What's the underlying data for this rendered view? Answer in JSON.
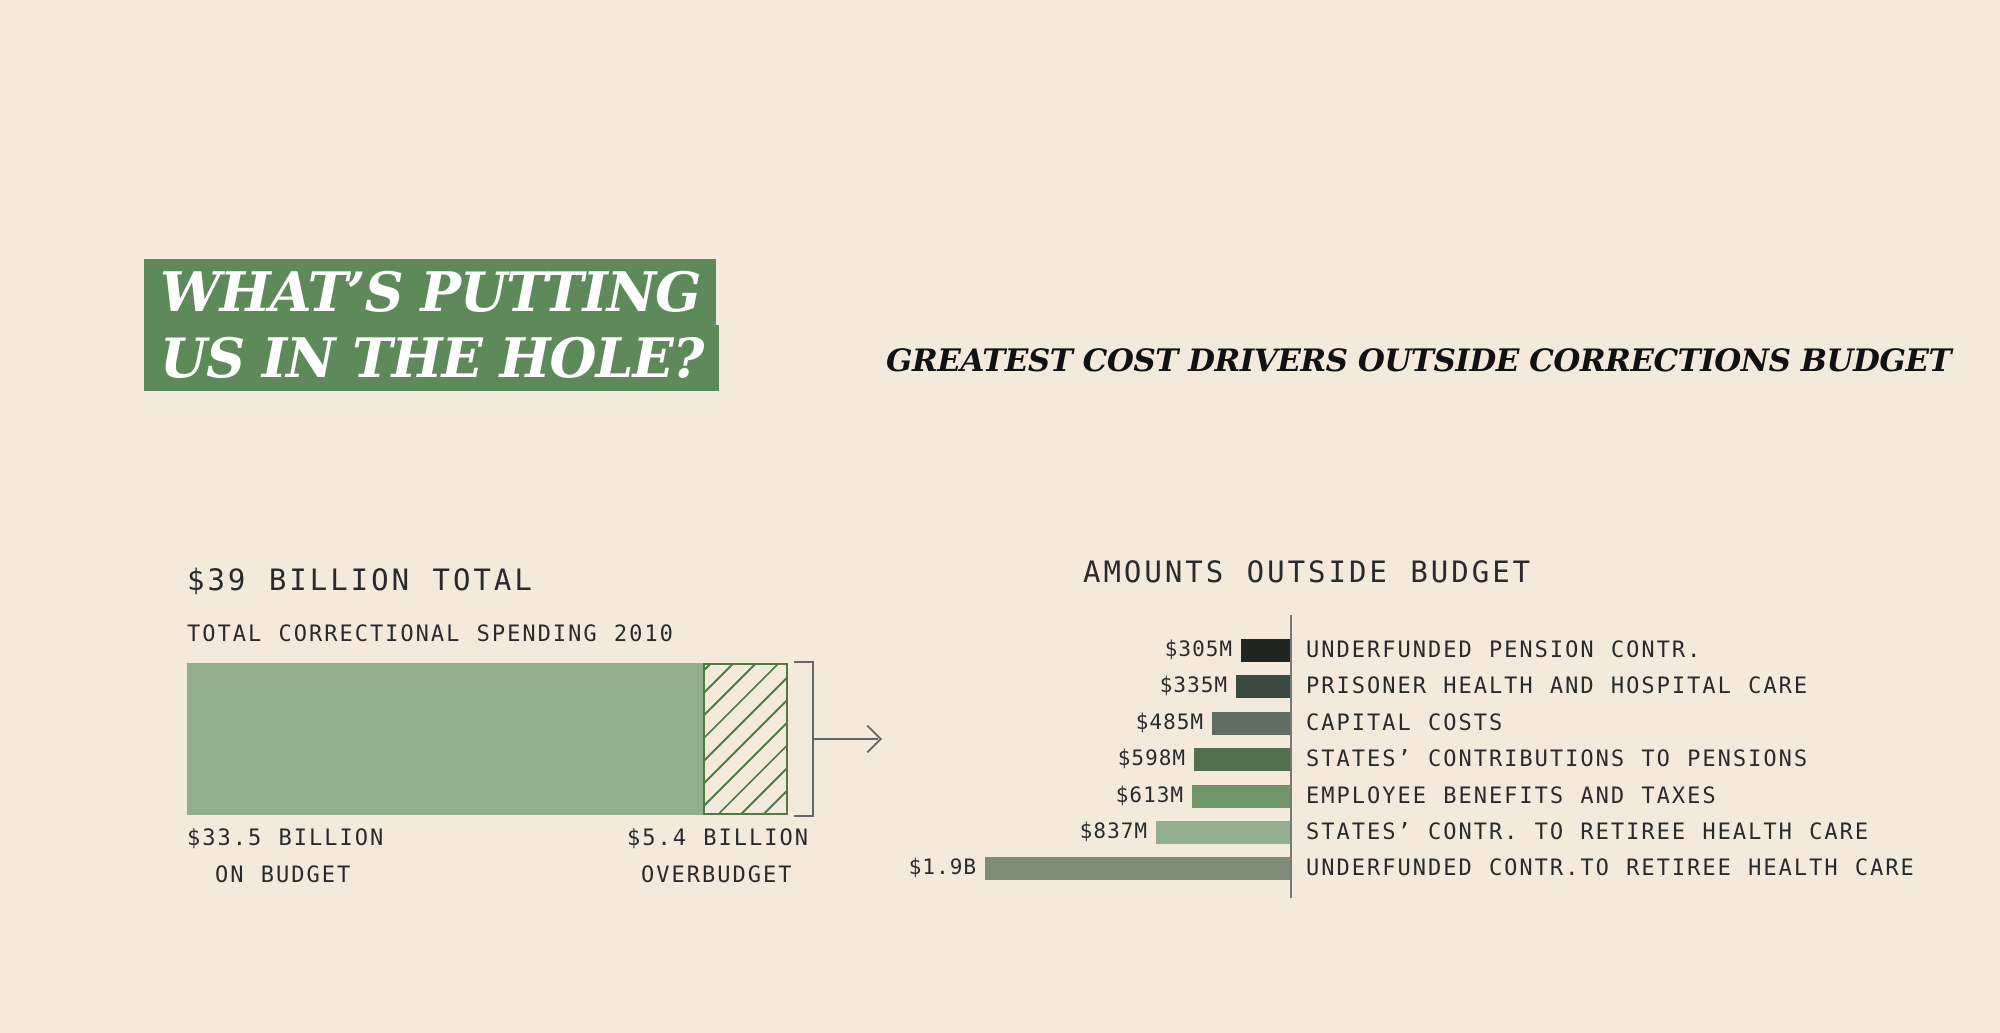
{
  "title": {
    "line1": "WHAT’S PUTTING",
    "line2": "US IN THE HOLE?"
  },
  "right_title": "GREATEST COST DRIVERS OUTSIDE CORRECTIONS BUDGET",
  "colors": {
    "background": "#f4eadc",
    "title_bg": "#5e8a5a",
    "on_budget": "#93ae8e",
    "over_budget_hatch": "#4f7a45"
  },
  "chart_data": [
    {
      "type": "bar",
      "title": "$39 BILLION TOTAL",
      "subtitle": "TOTAL CORRECTIONAL SPENDING 2010",
      "orientation": "horizontal-stacked",
      "total": 39,
      "segments": [
        {
          "value_label": "$33.5 BILLION",
          "label": "ON BUDGET",
          "value": 33.5,
          "style": "solid"
        },
        {
          "value_label": "$5.4 BILLION",
          "label": "OVERBUDGET",
          "value": 5.4,
          "style": "hatched"
        }
      ]
    },
    {
      "type": "bar",
      "title": "AMOUNTS OUTSIDE BUDGET",
      "orientation": "horizontal",
      "bars": [
        {
          "category": "UNDERFUNDED PENSION CONTR.",
          "label": "$305M",
          "value": 305,
          "color": "#1f2620"
        },
        {
          "category": "PRISONER HEALTH AND HOSPITAL CARE",
          "label": "$335M",
          "value": 335,
          "color": "#3a4a3e"
        },
        {
          "category": "CAPITAL COSTS",
          "label": "$485M",
          "value": 485,
          "color": "#5f6e60"
        },
        {
          "category": "STATES’ CONTRIBUTIONS TO PENSIONS",
          "label": "$598M",
          "value": 598,
          "color": "#546e50"
        },
        {
          "category": "EMPLOYEE BENEFITS AND TAXES",
          "label": "$613M",
          "value": 613,
          "color": "#6f9468"
        },
        {
          "category": "STATES’ CONTR. TO RETIREE HEALTH CARE",
          "label": "$837M",
          "value": 837,
          "color": "#93ae8e"
        },
        {
          "category": "UNDERFUNDED CONTR.TO RETIREE HEALTH CARE",
          "label": "$1.9B",
          "value": 1900,
          "color": "#7e8c78"
        }
      ]
    }
  ]
}
